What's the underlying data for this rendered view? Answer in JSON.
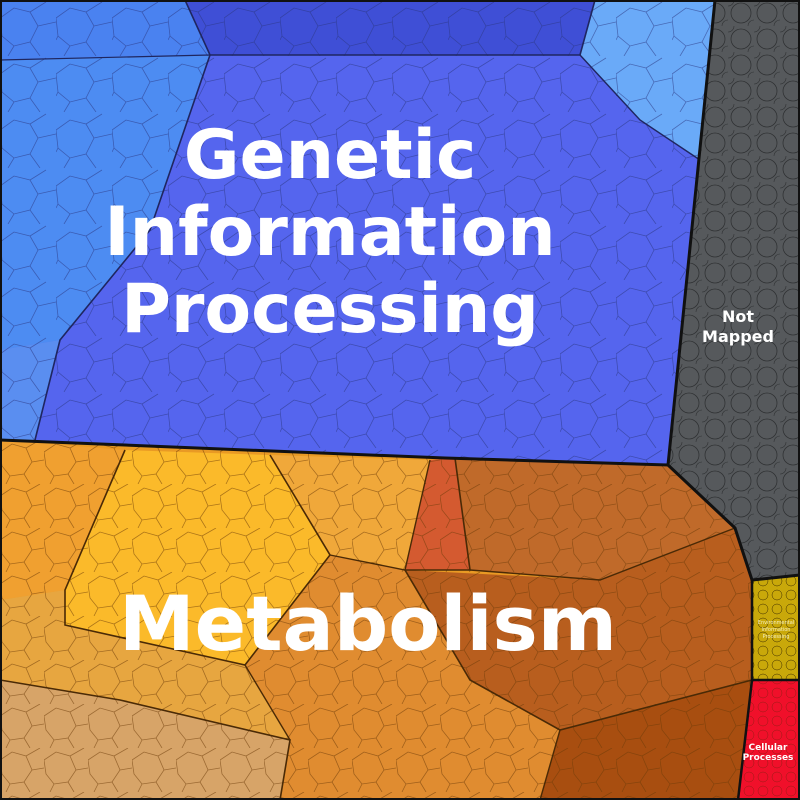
{
  "diagram": {
    "type": "voronoi-treemap",
    "regions": [
      {
        "id": "genetic",
        "label_lines": [
          "Genetic",
          "Information",
          "Processing"
        ],
        "color": "#5a6cf0"
      },
      {
        "id": "metabolism",
        "label_lines": [
          "Metabolism"
        ],
        "color": "#e69a2a"
      },
      {
        "id": "not-mapped",
        "label_lines": [
          "Not",
          "Mapped"
        ],
        "color": "#56595c"
      },
      {
        "id": "environmental",
        "label_lines": [
          "Environmental",
          "Information",
          "Processing"
        ],
        "color": "#c9a80a"
      },
      {
        "id": "cellular",
        "label_lines": [
          "Cellular",
          "Processes"
        ],
        "color": "#f0102a"
      }
    ]
  }
}
